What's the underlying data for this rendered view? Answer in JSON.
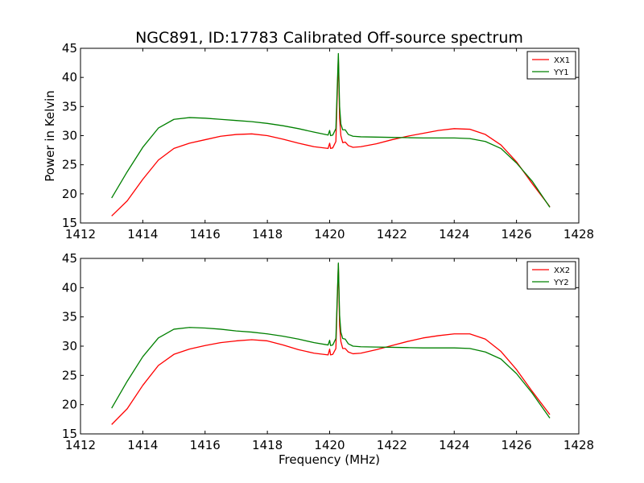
{
  "title": "NGC891, ID:17783 Calibrated Off-source spectrum",
  "xlabel": "Frequency (MHz)",
  "ylabel": "Power in Kelvin",
  "colors": {
    "red": "#ff0000",
    "green": "#008000"
  },
  "chart_data": [
    {
      "type": "line",
      "xlim": [
        1412,
        1428
      ],
      "ylim": [
        15,
        45
      ],
      "xticks": [
        1412,
        1414,
        1416,
        1418,
        1420,
        1422,
        1424,
        1426,
        1428
      ],
      "yticks": [
        15,
        20,
        25,
        30,
        35,
        40,
        45
      ],
      "legend_position": "top-right",
      "series": [
        {
          "name": "XX1",
          "color": "red",
          "x": [
            1413.0,
            1413.5,
            1414.0,
            1414.5,
            1415.0,
            1415.5,
            1416.0,
            1416.5,
            1417.0,
            1417.5,
            1418.0,
            1418.5,
            1419.0,
            1419.5,
            1419.95,
            1420.0,
            1420.03,
            1420.1,
            1420.2,
            1420.28,
            1420.32,
            1420.36,
            1420.42,
            1420.5,
            1420.6,
            1420.75,
            1421.0,
            1421.5,
            1422.0,
            1422.5,
            1423.0,
            1423.5,
            1424.0,
            1424.5,
            1425.0,
            1425.5,
            1426.0,
            1426.5,
            1427.07
          ],
          "y": [
            16.2,
            18.8,
            22.5,
            25.8,
            27.8,
            28.7,
            29.3,
            29.9,
            30.2,
            30.3,
            30.0,
            29.4,
            28.7,
            28.1,
            27.8,
            28.7,
            27.8,
            27.9,
            29.0,
            43.5,
            33.0,
            30.0,
            28.8,
            28.9,
            28.3,
            28.0,
            28.1,
            28.6,
            29.3,
            29.9,
            30.4,
            30.9,
            31.2,
            31.1,
            30.2,
            28.4,
            25.5,
            21.8,
            17.8
          ]
        },
        {
          "name": "YY1",
          "color": "green",
          "x": [
            1413.0,
            1413.5,
            1414.0,
            1414.5,
            1415.0,
            1415.5,
            1416.0,
            1416.5,
            1417.0,
            1417.5,
            1418.0,
            1418.5,
            1419.0,
            1419.5,
            1419.95,
            1420.0,
            1420.03,
            1420.1,
            1420.2,
            1420.28,
            1420.32,
            1420.36,
            1420.42,
            1420.5,
            1420.6,
            1420.75,
            1421.0,
            1421.5,
            1422.0,
            1422.5,
            1423.0,
            1423.5,
            1424.0,
            1424.5,
            1425.0,
            1425.5,
            1426.0,
            1426.5,
            1427.07
          ],
          "y": [
            19.3,
            23.8,
            28.0,
            31.3,
            32.8,
            33.1,
            33.0,
            32.8,
            32.6,
            32.4,
            32.1,
            31.7,
            31.2,
            30.6,
            30.1,
            30.9,
            30.0,
            30.1,
            31.2,
            44.1,
            35.0,
            32.0,
            31.0,
            31.0,
            30.2,
            29.9,
            29.8,
            29.75,
            29.7,
            29.65,
            29.6,
            29.6,
            29.6,
            29.5,
            29.0,
            27.8,
            25.3,
            22.2,
            17.7
          ]
        }
      ]
    },
    {
      "type": "line",
      "xlim": [
        1412,
        1428
      ],
      "ylim": [
        15,
        45
      ],
      "xticks": [
        1412,
        1414,
        1416,
        1418,
        1420,
        1422,
        1424,
        1426,
        1428
      ],
      "yticks": [
        15,
        20,
        25,
        30,
        35,
        40,
        45
      ],
      "legend_position": "top-right",
      "series": [
        {
          "name": "XX2",
          "color": "red",
          "x": [
            1413.0,
            1413.5,
            1414.0,
            1414.5,
            1415.0,
            1415.5,
            1416.0,
            1416.5,
            1417.0,
            1417.5,
            1418.0,
            1418.5,
            1419.0,
            1419.5,
            1419.95,
            1420.0,
            1420.03,
            1420.1,
            1420.2,
            1420.28,
            1420.32,
            1420.36,
            1420.42,
            1420.5,
            1420.6,
            1420.75,
            1421.0,
            1421.5,
            1422.0,
            1422.5,
            1423.0,
            1423.5,
            1424.0,
            1424.5,
            1425.0,
            1425.5,
            1426.0,
            1426.5,
            1427.07
          ],
          "y": [
            16.6,
            19.3,
            23.3,
            26.7,
            28.6,
            29.5,
            30.1,
            30.6,
            30.9,
            31.1,
            30.9,
            30.2,
            29.4,
            28.8,
            28.5,
            29.5,
            28.5,
            28.6,
            29.6,
            44.0,
            33.5,
            30.8,
            29.6,
            29.6,
            29.0,
            28.7,
            28.8,
            29.4,
            30.1,
            30.8,
            31.4,
            31.8,
            32.1,
            32.1,
            31.2,
            29.1,
            26.0,
            22.3,
            18.3
          ]
        },
        {
          "name": "YY2",
          "color": "green",
          "x": [
            1413.0,
            1413.5,
            1414.0,
            1414.5,
            1415.0,
            1415.5,
            1416.0,
            1416.5,
            1417.0,
            1417.5,
            1418.0,
            1418.5,
            1419.0,
            1419.5,
            1419.95,
            1420.0,
            1420.03,
            1420.1,
            1420.2,
            1420.28,
            1420.32,
            1420.36,
            1420.42,
            1420.5,
            1420.6,
            1420.75,
            1421.0,
            1421.5,
            1422.0,
            1422.5,
            1423.0,
            1423.5,
            1424.0,
            1424.5,
            1425.0,
            1425.5,
            1426.0,
            1426.5,
            1427.07
          ],
          "y": [
            19.4,
            24.0,
            28.2,
            31.4,
            32.9,
            33.2,
            33.1,
            32.9,
            32.6,
            32.4,
            32.1,
            31.7,
            31.2,
            30.6,
            30.2,
            31.0,
            30.1,
            30.2,
            31.3,
            44.2,
            35.3,
            32.4,
            31.3,
            31.2,
            30.4,
            30.0,
            29.9,
            29.85,
            29.8,
            29.75,
            29.7,
            29.7,
            29.7,
            29.6,
            29.0,
            27.8,
            25.3,
            22.0,
            17.7
          ]
        }
      ]
    }
  ]
}
